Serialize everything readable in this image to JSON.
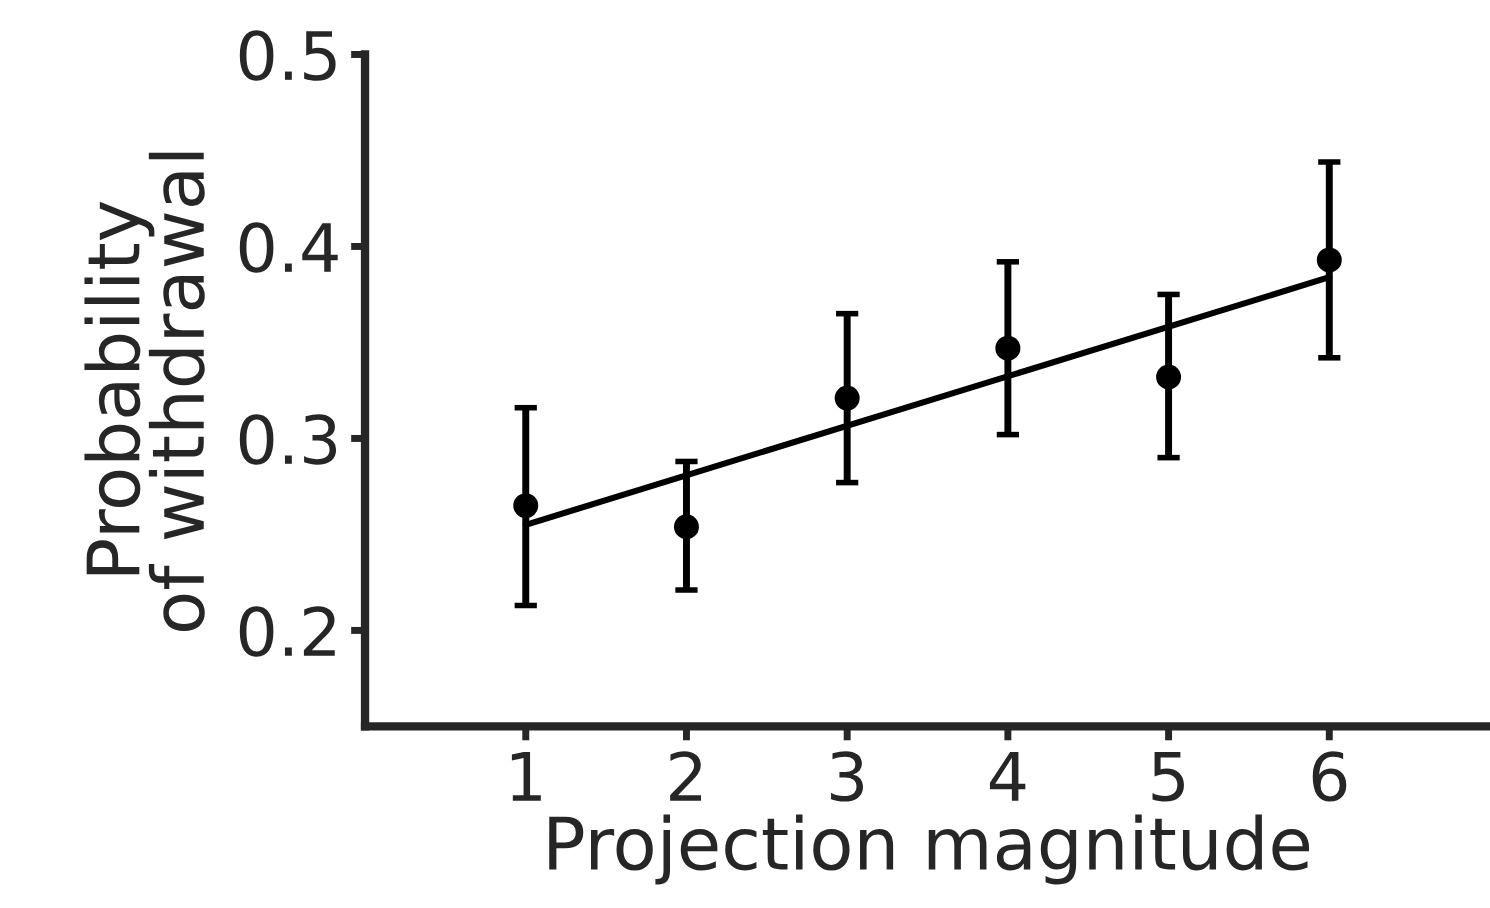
{
  "chart_data": {
    "type": "scatter",
    "xlabel": "Projection magnitude",
    "ylabel": "Probability\nof withdrawal",
    "xlim": [
      0,
      7
    ],
    "ylim": [
      0.15,
      0.5
    ],
    "xticks": [
      1,
      2,
      3,
      4,
      5,
      6
    ],
    "yticks": [
      0.2,
      0.3,
      0.4,
      0.5
    ],
    "grid": false,
    "legend": false,
    "marker": "circle",
    "series": [
      {
        "color": "#000000",
        "x": [
          1,
          2,
          3,
          4,
          5,
          6
        ],
        "values": [
          0.265,
          0.254,
          0.321,
          0.347,
          0.332,
          0.393
        ],
        "errors": [
          [
            0.213,
            0.316
          ],
          [
            0.221,
            0.288
          ],
          [
            0.277,
            0.365
          ],
          [
            0.302,
            0.392
          ],
          [
            0.29,
            0.375
          ],
          [
            0.342,
            0.444
          ]
        ]
      },
      {
        "type": "line",
        "color": "#000000",
        "x": [
          1,
          6
        ],
        "values": [
          0.255,
          0.384
        ],
        "marker": "none",
        "line_style": "solid"
      }
    ]
  }
}
